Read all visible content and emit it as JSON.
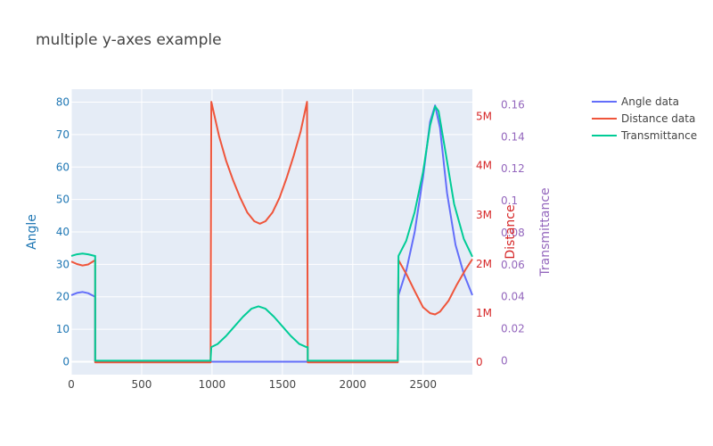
{
  "chart_data": {
    "type": "line",
    "title": "multiple y-axes example",
    "x_range": [
      0,
      2850
    ],
    "x_ticks": [
      0,
      500,
      1000,
      1500,
      2000,
      2500
    ],
    "x_tick_labels": [
      "0",
      "500",
      "1000",
      "1500",
      "2000",
      "2500"
    ],
    "grid": true,
    "legend_position": "top-right",
    "axes": {
      "y1": {
        "title": "Angle",
        "color": "#1f77b4",
        "range": [
          -4,
          84
        ],
        "ticks": [
          0,
          10,
          20,
          30,
          40,
          50,
          60,
          70,
          80
        ],
        "tick_labels": [
          "0",
          "10",
          "20",
          "30",
          "40",
          "50",
          "60",
          "70",
          "80"
        ]
      },
      "y2": {
        "title": "Distance",
        "color": "#d62728",
        "range": [
          -250000,
          5555000
        ],
        "ticks": [
          0,
          1000000,
          2000000,
          3000000,
          4000000,
          5000000
        ],
        "tick_labels": [
          "0",
          "1M",
          "2M",
          "3M",
          "4M",
          "5M"
        ]
      },
      "y3": {
        "title": "Transmittance",
        "color": "#9467bd",
        "range": [
          -0.0087,
          0.1697
        ],
        "ticks": [
          0,
          0.02,
          0.04,
          0.06,
          0.08,
          0.1,
          0.12,
          0.14,
          0.16
        ],
        "tick_labels": [
          "0",
          "0.02",
          "0.04",
          "0.06",
          "0.08",
          "0.1",
          "0.12",
          "0.14",
          "0.16"
        ]
      }
    },
    "series": [
      {
        "name": "Angle data",
        "axis": "y1",
        "color": "#636efa",
        "points": [
          [
            0,
            20.5
          ],
          [
            40,
            21.2
          ],
          [
            80,
            21.5
          ],
          [
            120,
            21.1
          ],
          [
            160,
            20.2
          ],
          [
            170,
            20.0
          ],
          [
            170,
            0
          ],
          [
            1000,
            0
          ],
          [
            1680,
            0
          ],
          [
            2320,
            0
          ],
          [
            2325,
            20.5
          ],
          [
            2380,
            28
          ],
          [
            2440,
            40
          ],
          [
            2500,
            57
          ],
          [
            2550,
            74
          ],
          [
            2585,
            79
          ],
          [
            2620,
            72
          ],
          [
            2670,
            52
          ],
          [
            2730,
            36
          ],
          [
            2790,
            27
          ],
          [
            2850,
            20.5
          ]
        ]
      },
      {
        "name": "Distance data",
        "axis": "y2",
        "color": "#ef553b",
        "points": [
          [
            0,
            2050000
          ],
          [
            40,
            2000000
          ],
          [
            80,
            1970000
          ],
          [
            120,
            1990000
          ],
          [
            170,
            2080000
          ],
          [
            170,
            0
          ],
          [
            990,
            0
          ],
          [
            995,
            5300000
          ],
          [
            1050,
            4600000
          ],
          [
            1100,
            4100000
          ],
          [
            1150,
            3700000
          ],
          [
            1200,
            3350000
          ],
          [
            1250,
            3050000
          ],
          [
            1300,
            2870000
          ],
          [
            1340,
            2820000
          ],
          [
            1380,
            2870000
          ],
          [
            1430,
            3050000
          ],
          [
            1480,
            3350000
          ],
          [
            1530,
            3750000
          ],
          [
            1580,
            4200000
          ],
          [
            1630,
            4700000
          ],
          [
            1675,
            5300000
          ],
          [
            1680,
            0
          ],
          [
            2320,
            0
          ],
          [
            2325,
            2080000
          ],
          [
            2380,
            1800000
          ],
          [
            2440,
            1450000
          ],
          [
            2500,
            1120000
          ],
          [
            2550,
            1000000
          ],
          [
            2585,
            975000
          ],
          [
            2620,
            1030000
          ],
          [
            2680,
            1250000
          ],
          [
            2740,
            1580000
          ],
          [
            2800,
            1880000
          ],
          [
            2850,
            2100000
          ]
        ]
      },
      {
        "name": "Transmittance",
        "axis": "y3",
        "color": "#00cc96",
        "points": [
          [
            0,
            0.0655
          ],
          [
            40,
            0.0665
          ],
          [
            80,
            0.067
          ],
          [
            120,
            0.0665
          ],
          [
            165,
            0.0655
          ],
          [
            170,
            0.0655
          ],
          [
            170,
            0
          ],
          [
            990,
            0
          ],
          [
            995,
            0.0085
          ],
          [
            1040,
            0.0105
          ],
          [
            1100,
            0.0155
          ],
          [
            1160,
            0.0215
          ],
          [
            1220,
            0.0275
          ],
          [
            1280,
            0.0325
          ],
          [
            1330,
            0.034
          ],
          [
            1380,
            0.0325
          ],
          [
            1440,
            0.0275
          ],
          [
            1500,
            0.0215
          ],
          [
            1560,
            0.0155
          ],
          [
            1620,
            0.0105
          ],
          [
            1670,
            0.0085
          ],
          [
            1680,
            0.0085
          ],
          [
            1680,
            0
          ],
          [
            2320,
            0
          ],
          [
            2325,
            0.0655
          ],
          [
            2380,
            0.075
          ],
          [
            2440,
            0.093
          ],
          [
            2500,
            0.118
          ],
          [
            2550,
            0.147
          ],
          [
            2585,
            0.159
          ],
          [
            2610,
            0.156
          ],
          [
            2660,
            0.13
          ],
          [
            2720,
            0.098
          ],
          [
            2790,
            0.076
          ],
          [
            2850,
            0.065
          ]
        ]
      }
    ]
  }
}
